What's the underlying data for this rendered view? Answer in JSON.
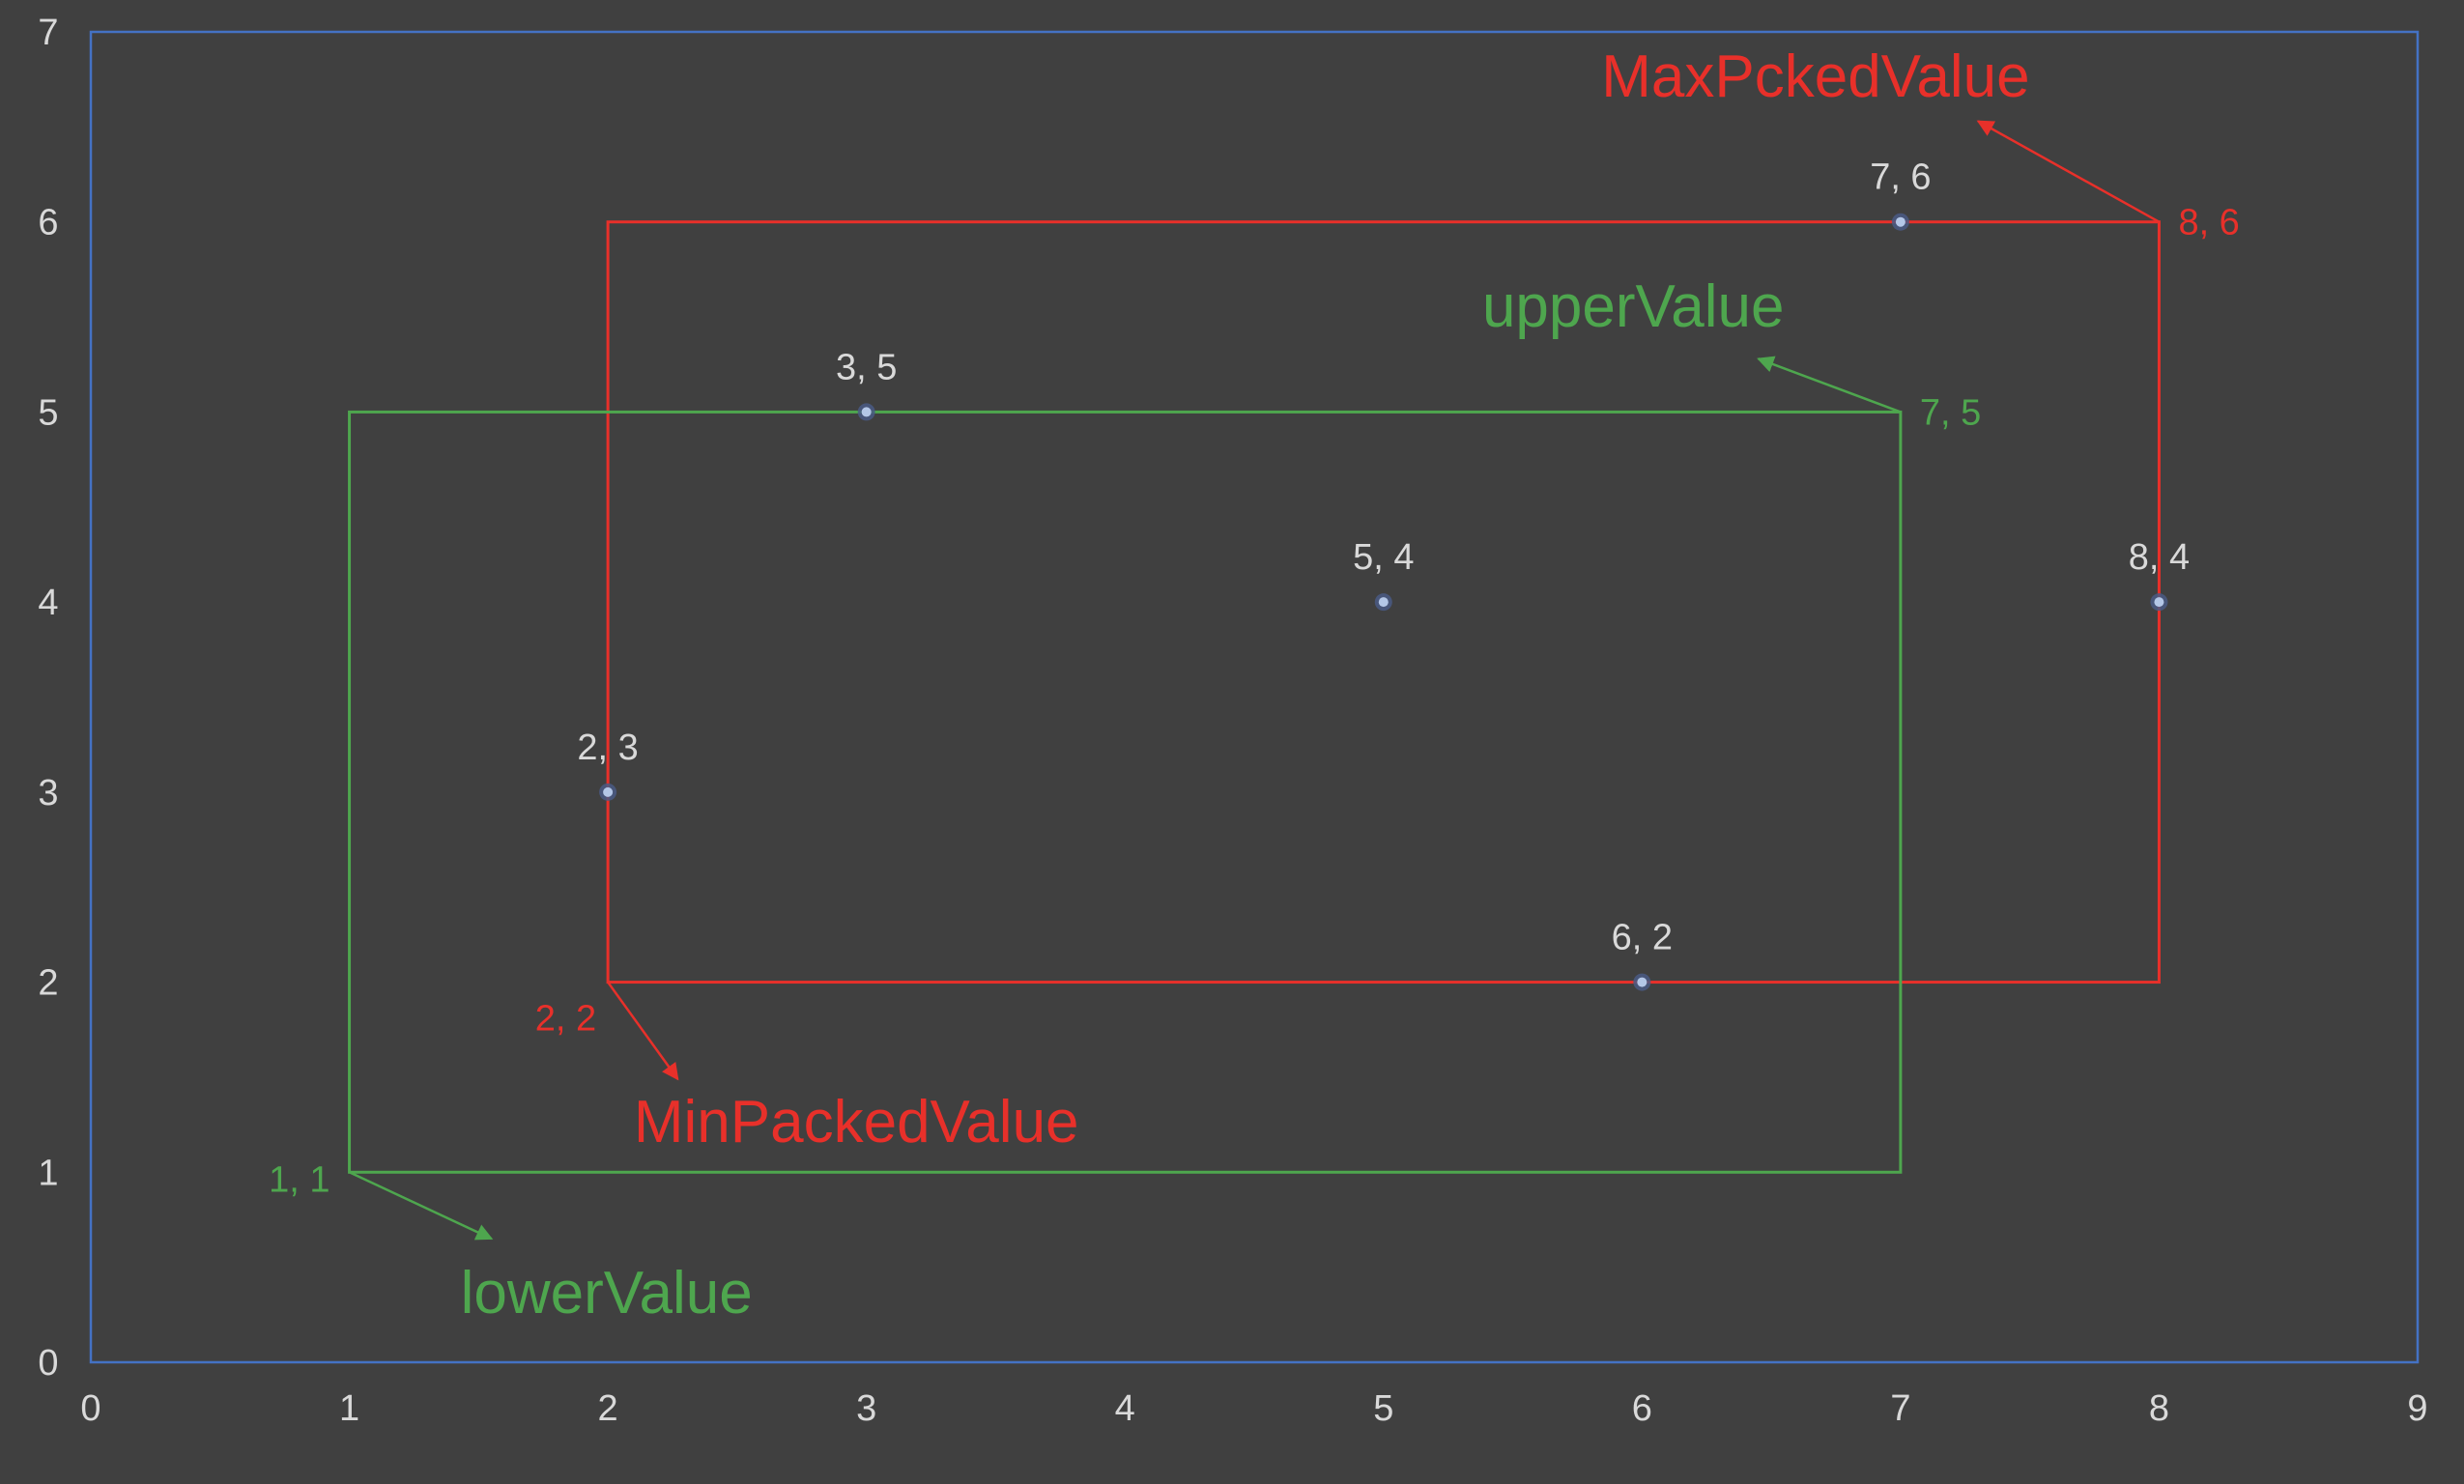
{
  "chart_data": {
    "type": "scatter",
    "xlim": [
      0,
      9
    ],
    "ylim": [
      0,
      7
    ],
    "x_ticks": [
      "0",
      "1",
      "2",
      "3",
      "4",
      "5",
      "6",
      "7",
      "8",
      "9"
    ],
    "y_ticks": [
      "0",
      "1",
      "2",
      "3",
      "4",
      "5",
      "6",
      "7"
    ],
    "grid": false,
    "colors": {
      "background": "#404040",
      "axis_border": "#4472c4",
      "red": "#e8302a",
      "green": "#4ea64e",
      "point_fill": "#b4c7e7",
      "point_halo": "#4a5a85",
      "text": "#d9d9d9"
    },
    "points": [
      {
        "x": 2,
        "y": 3,
        "label": "2, 3"
      },
      {
        "x": 3,
        "y": 5,
        "label": "3, 5"
      },
      {
        "x": 5,
        "y": 4,
        "label": "5, 4"
      },
      {
        "x": 6,
        "y": 2,
        "label": "6, 2"
      },
      {
        "x": 7,
        "y": 6,
        "label": "7, 6"
      },
      {
        "x": 8,
        "y": 4,
        "label": "8, 4"
      }
    ],
    "rectangles": [
      {
        "name": "red-box",
        "color": "red",
        "x1": 2,
        "y1": 2,
        "x2": 8,
        "y2": 6
      },
      {
        "name": "green-box",
        "color": "green",
        "x1": 1,
        "y1": 1,
        "x2": 7,
        "y2": 5
      }
    ],
    "corner_labels": [
      {
        "text": "8, 6",
        "color": "red",
        "x": 8,
        "y": 6,
        "anchor": "right"
      },
      {
        "text": "2, 2",
        "color": "red",
        "x": 2,
        "y": 2,
        "anchor": "below-left"
      },
      {
        "text": "7, 5",
        "color": "green",
        "x": 7,
        "y": 5,
        "anchor": "right"
      },
      {
        "text": "1, 1",
        "color": "green",
        "x": 1,
        "y": 1,
        "anchor": "left"
      }
    ],
    "annotations": [
      {
        "text": "MaxPckedValue",
        "color": "red",
        "from": [
          8,
          6
        ],
        "to": [
          7.3,
          6.53
        ],
        "text_at": [
          7.5,
          6.66
        ],
        "text_anchor": "end"
      },
      {
        "text": "MinPackedValue",
        "color": "red",
        "from": [
          2,
          2
        ],
        "to": [
          2.27,
          1.49
        ],
        "text_at": [
          2.1,
          1.16
        ],
        "text_anchor": "start"
      },
      {
        "text": "upperValue",
        "color": "green",
        "from": [
          7,
          5
        ],
        "to": [
          6.45,
          5.28
        ],
        "text_at": [
          6.55,
          5.45
        ],
        "text_anchor": "end"
      },
      {
        "text": "lowerValue",
        "color": "green",
        "from": [
          1,
          1
        ],
        "to": [
          1.55,
          0.65
        ],
        "text_at": [
          1.43,
          0.26
        ],
        "text_anchor": "start"
      }
    ]
  }
}
